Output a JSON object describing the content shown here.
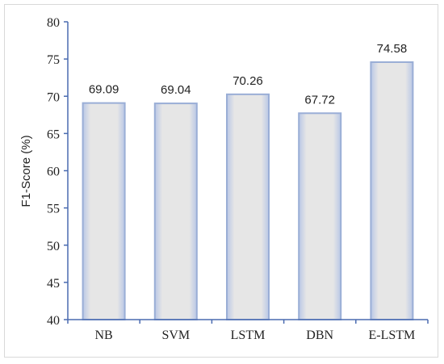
{
  "chart_data": {
    "type": "bar",
    "categories": [
      "NB",
      "SVM",
      "LSTM",
      "DBN",
      "E-LSTM"
    ],
    "values": [
      69.09,
      69.04,
      70.26,
      67.72,
      74.58
    ],
    "value_labels": [
      "69.09",
      "69.04",
      "70.26",
      "67.72",
      "74.58"
    ],
    "title": "",
    "xlabel": "",
    "ylabel": "F1-Score (%)",
    "ylim": [
      40,
      80
    ],
    "yticks": [
      40,
      45,
      50,
      55,
      60,
      65,
      70,
      75,
      80
    ],
    "grid": false,
    "legend": "none",
    "colors": {
      "bar_fill": "#e3e3e3",
      "bar_border": "#9aaed6",
      "axis": "#4a6bb0"
    }
  }
}
